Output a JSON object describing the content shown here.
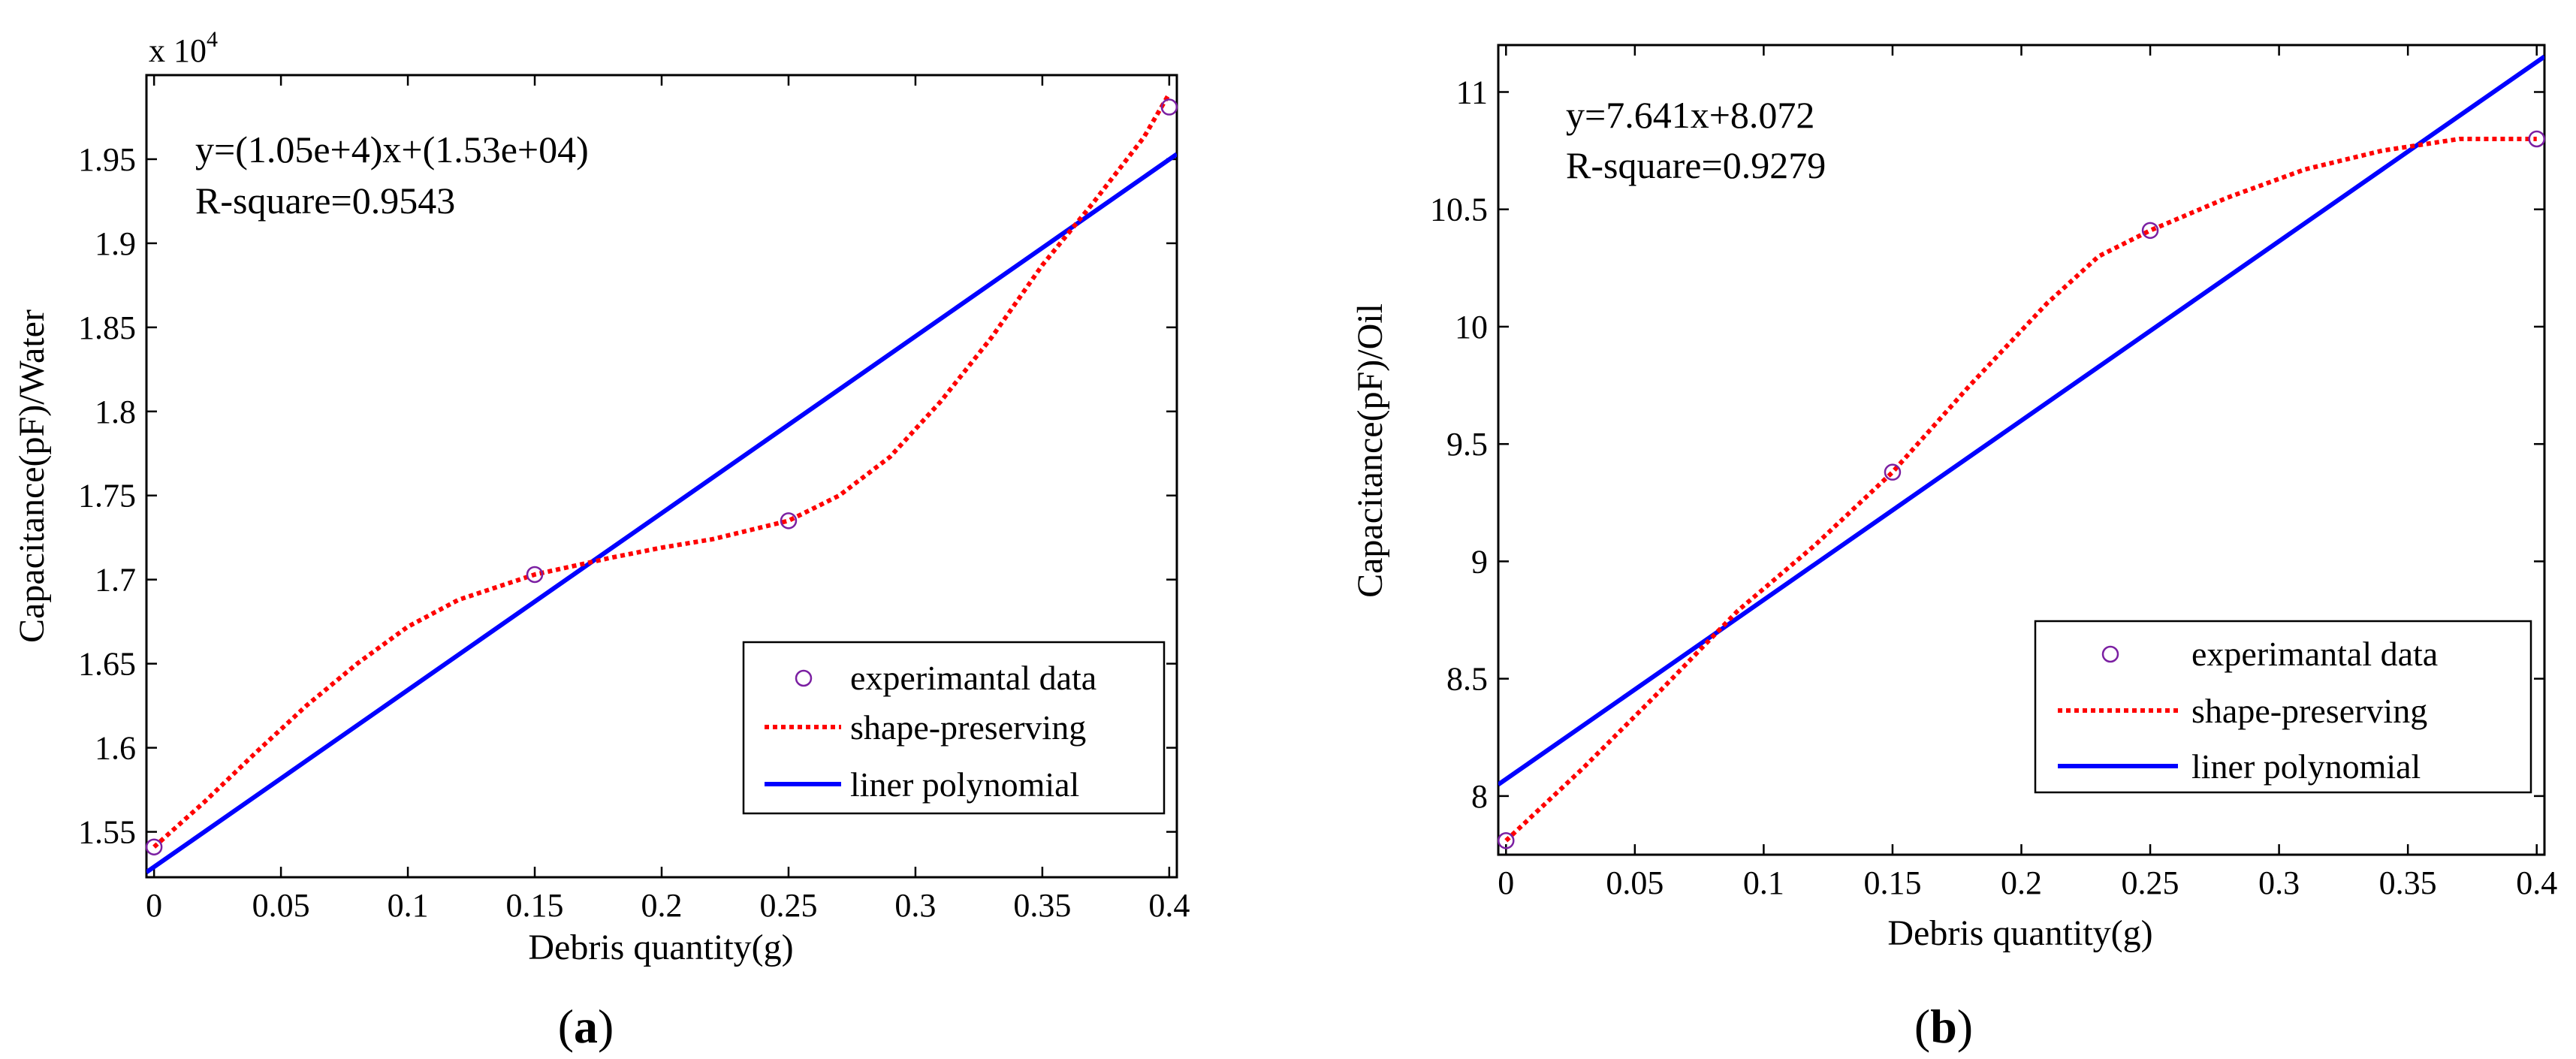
{
  "chart_data": [
    {
      "panel_label": "a",
      "type": "scatter",
      "xlabel": "Debris quantity(g)",
      "ylabel": "Capacitance(pF)/Water",
      "y_exponent_label": "x 10",
      "y_exponent_power": "4",
      "xlim": [
        -0.003,
        0.403
      ],
      "ylim": [
        1.523,
        2.0
      ],
      "xticks": [
        0,
        0.05,
        0.1,
        0.15,
        0.2,
        0.25,
        0.3,
        0.35,
        0.4
      ],
      "xtick_labels": [
        "0",
        "0.05",
        "0.1",
        "0.15",
        "0.2",
        "0.25",
        "0.3",
        "0.35",
        "0.4"
      ],
      "yticks": [
        1.55,
        1.6,
        1.65,
        1.7,
        1.75,
        1.8,
        1.85,
        1.9,
        1.95
      ],
      "ytick_labels": [
        "1.55",
        "1.6",
        "1.65",
        "1.7",
        "1.75",
        "1.8",
        "1.85",
        "1.9",
        "1.95"
      ],
      "equation": "y=(1.05e+4)x+(1.53e+04)",
      "r_square": "R-square=0.9543",
      "legend_position": "bottom-right",
      "series": [
        {
          "name": "experimantal data",
          "kind": "markers",
          "color": "#7b1fa2",
          "x": [
            0,
            0.15,
            0.25,
            0.4
          ],
          "y": [
            1.541,
            1.703,
            1.735,
            1.981
          ]
        },
        {
          "name": "shape-preserving",
          "kind": "dotted",
          "color": "#ff0000",
          "x": [
            0,
            0.02,
            0.04,
            0.06,
            0.08,
            0.1,
            0.12,
            0.15,
            0.18,
            0.2,
            0.22,
            0.25,
            0.27,
            0.29,
            0.31,
            0.33,
            0.35,
            0.37,
            0.39,
            0.4
          ],
          "y": [
            1.541,
            1.568,
            1.597,
            1.625,
            1.65,
            1.672,
            1.688,
            1.703,
            1.713,
            1.719,
            1.724,
            1.735,
            1.75,
            1.773,
            1.806,
            1.844,
            1.887,
            1.924,
            1.963,
            1.989
          ]
        },
        {
          "name": "liner polynomial",
          "kind": "line",
          "color": "#0000ff",
          "x": [
            -0.003,
            0.403
          ],
          "y": [
            1.526,
            1.953
          ]
        }
      ]
    },
    {
      "panel_label": "b",
      "type": "scatter",
      "xlabel": "Debris quantity(g)",
      "ylabel": "Capacitance(pF)/Oil",
      "xlim": [
        -0.003,
        0.403
      ],
      "ylim": [
        7.75,
        11.2
      ],
      "xticks": [
        0,
        0.05,
        0.1,
        0.15,
        0.2,
        0.25,
        0.3,
        0.35,
        0.4
      ],
      "xtick_labels": [
        "0",
        "0.05",
        "0.1",
        "0.15",
        "0.2",
        "0.25",
        "0.3",
        "0.35",
        "0.4"
      ],
      "yticks": [
        8,
        8.5,
        9,
        9.5,
        10,
        10.5,
        11
      ],
      "ytick_labels": [
        "8",
        "8.5",
        "9",
        "9.5",
        "10",
        "10.5",
        "11"
      ],
      "equation": "y=7.641x+8.072",
      "r_square": "R-square=0.9279",
      "legend_position": "bottom-right",
      "series": [
        {
          "name": "experimantal data",
          "kind": "markers",
          "color": "#7b1fa2",
          "x": [
            0,
            0.15,
            0.25,
            0.4
          ],
          "y": [
            7.81,
            9.38,
            10.41,
            10.8
          ]
        },
        {
          "name": "shape-preserving",
          "kind": "dotted",
          "color": "#ff0000",
          "x": [
            0,
            0.03,
            0.06,
            0.09,
            0.12,
            0.15,
            0.18,
            0.21,
            0.23,
            0.25,
            0.28,
            0.31,
            0.34,
            0.37,
            0.39,
            0.4
          ],
          "y": [
            7.81,
            8.12,
            8.45,
            8.79,
            9.07,
            9.38,
            9.75,
            10.1,
            10.3,
            10.41,
            10.55,
            10.67,
            10.75,
            10.8,
            10.8,
            10.8
          ]
        },
        {
          "name": "liner polynomial",
          "kind": "line",
          "color": "#0000ff",
          "x": [
            -0.003,
            0.403
          ],
          "y": [
            8.049,
            11.151
          ]
        }
      ]
    }
  ]
}
